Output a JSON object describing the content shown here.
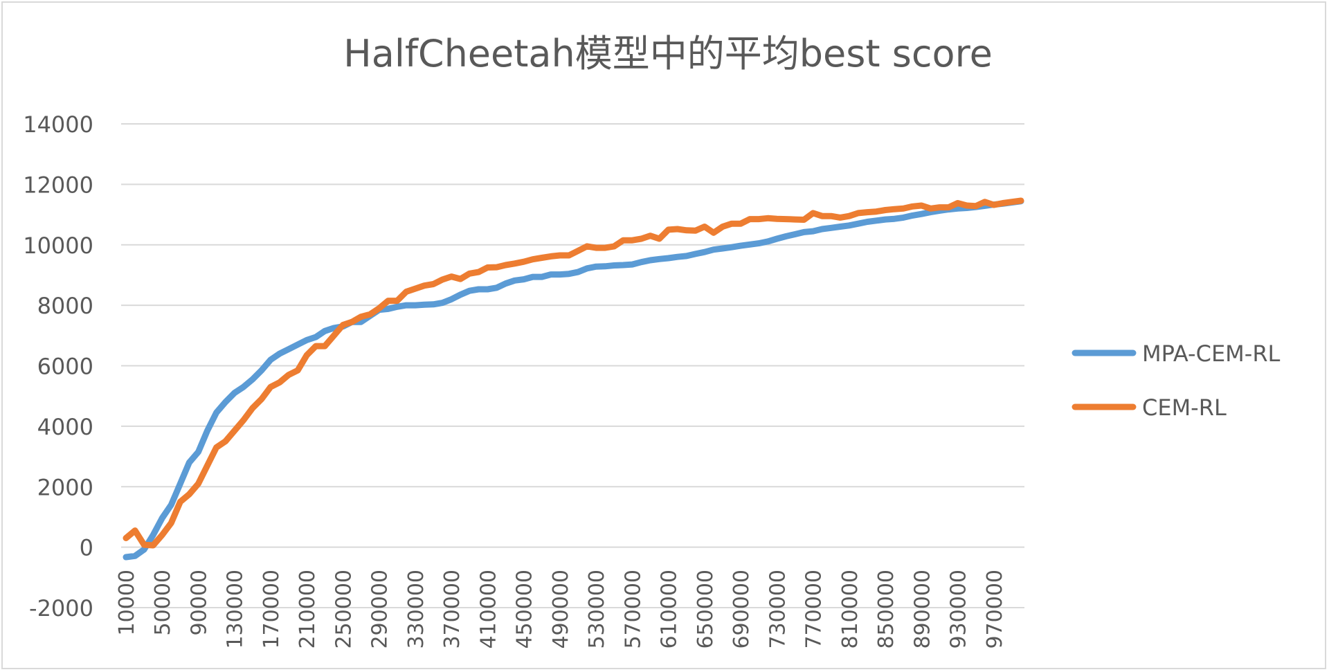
{
  "chart_data": {
    "type": "line",
    "title": "HalfCheetah模型中的平均best score",
    "xlabel": "",
    "ylabel": "",
    "ylim": [
      -2000,
      14000
    ],
    "yticks": [
      -2000,
      0,
      2000,
      4000,
      6000,
      8000,
      10000,
      12000,
      14000
    ],
    "xtick_labels": [
      "10000",
      "50000",
      "90000",
      "130000",
      "170000",
      "210000",
      "250000",
      "290000",
      "330000",
      "370000",
      "410000",
      "450000",
      "490000",
      "530000",
      "570000",
      "610000",
      "650000",
      "690000",
      "730000",
      "770000",
      "810000",
      "850000",
      "890000",
      "930000",
      "970000"
    ],
    "x": [
      10000,
      20000,
      30000,
      40000,
      50000,
      60000,
      70000,
      80000,
      90000,
      100000,
      110000,
      120000,
      130000,
      140000,
      150000,
      160000,
      170000,
      180000,
      190000,
      200000,
      210000,
      220000,
      230000,
      240000,
      250000,
      260000,
      270000,
      280000,
      290000,
      300000,
      310000,
      320000,
      330000,
      340000,
      350000,
      360000,
      370000,
      380000,
      390000,
      400000,
      410000,
      420000,
      430000,
      440000,
      450000,
      460000,
      470000,
      480000,
      490000,
      500000,
      510000,
      520000,
      530000,
      540000,
      550000,
      560000,
      570000,
      580000,
      590000,
      600000,
      610000,
      620000,
      630000,
      640000,
      650000,
      660000,
      670000,
      680000,
      690000,
      700000,
      710000,
      720000,
      730000,
      740000,
      750000,
      760000,
      770000,
      780000,
      790000,
      800000,
      810000,
      820000,
      830000,
      840000,
      850000,
      860000,
      870000,
      880000,
      890000,
      900000,
      910000,
      920000,
      930000,
      940000,
      950000,
      960000,
      970000,
      980000,
      990000,
      1000000
    ],
    "grid": true,
    "legend_position": "right",
    "series": [
      {
        "name": "MPA-CEM-RL",
        "color": "#5b9bd5",
        "values": [
          -330,
          -290,
          -80,
          400,
          960,
          1400,
          2100,
          2800,
          3150,
          3850,
          4450,
          4800,
          5100,
          5300,
          5550,
          5850,
          6200,
          6400,
          6550,
          6700,
          6850,
          6950,
          7150,
          7250,
          7300,
          7450,
          7450,
          7650,
          7850,
          7880,
          7950,
          8000,
          8000,
          8020,
          8030,
          8080,
          8200,
          8350,
          8480,
          8530,
          8530,
          8580,
          8720,
          8820,
          8860,
          8940,
          8940,
          9020,
          9020,
          9040,
          9100,
          9220,
          9280,
          9290,
          9320,
          9330,
          9350,
          9430,
          9490,
          9530,
          9560,
          9600,
          9630,
          9700,
          9760,
          9840,
          9880,
          9920,
          9970,
          10010,
          10050,
          10110,
          10200,
          10280,
          10350,
          10420,
          10450,
          10520,
          10560,
          10600,
          10640,
          10700,
          10760,
          10800,
          10840,
          10860,
          10900,
          10970,
          11020,
          11080,
          11130,
          11170,
          11200,
          11220,
          11250,
          11290,
          11330,
          11360,
          11400,
          11440
        ]
      },
      {
        "name": "CEM-RL",
        "color": "#ed7d31",
        "values": [
          300,
          550,
          80,
          60,
          400,
          800,
          1500,
          1750,
          2100,
          2700,
          3300,
          3500,
          3850,
          4200,
          4600,
          4900,
          5300,
          5450,
          5700,
          5850,
          6350,
          6650,
          6650,
          7000,
          7350,
          7450,
          7620,
          7700,
          7900,
          8150,
          8150,
          8450,
          8550,
          8650,
          8700,
          8850,
          8950,
          8870,
          9050,
          9100,
          9250,
          9260,
          9330,
          9380,
          9440,
          9520,
          9570,
          9620,
          9650,
          9650,
          9800,
          9950,
          9900,
          9900,
          9950,
          10150,
          10150,
          10200,
          10300,
          10200,
          10500,
          10520,
          10480,
          10470,
          10600,
          10400,
          10600,
          10700,
          10700,
          10850,
          10850,
          10880,
          10860,
          10850,
          10840,
          10830,
          11050,
          10950,
          10950,
          10900,
          10950,
          11050,
          11080,
          11100,
          11150,
          11180,
          11200,
          11270,
          11300,
          11200,
          11240,
          11240,
          11380,
          11300,
          11280,
          11420,
          11320,
          11380,
          11420,
          11460
        ]
      }
    ]
  }
}
